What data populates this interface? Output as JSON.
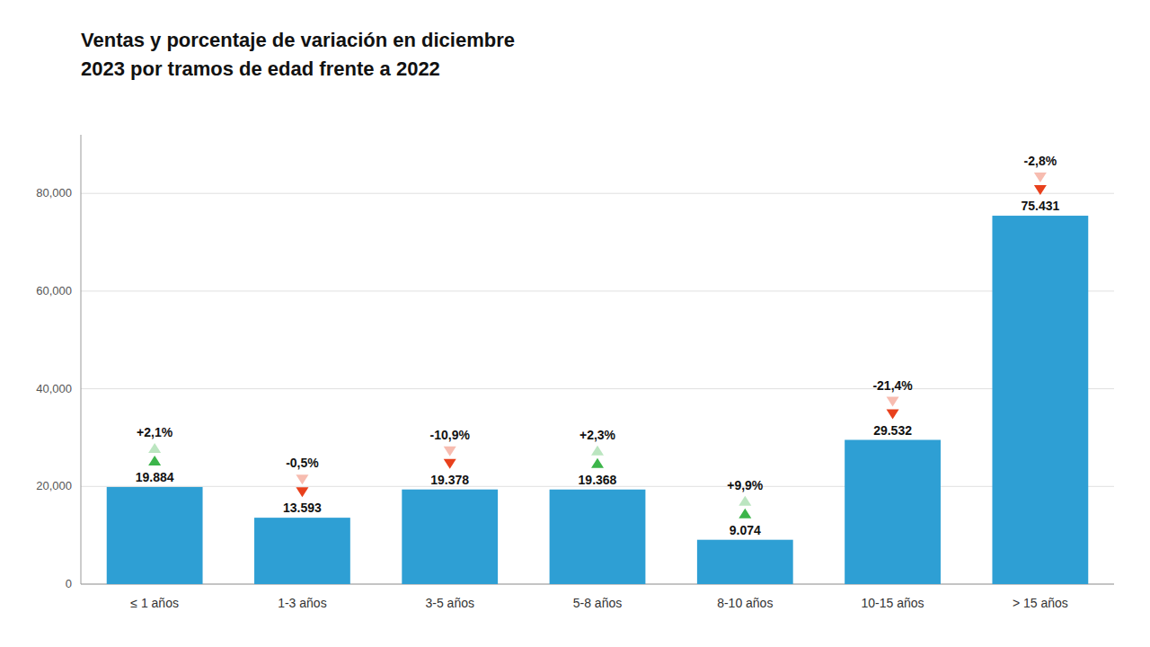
{
  "chart_data": {
    "type": "bar",
    "title": "Ventas y porcentaje de variación en diciembre",
    "subtitle": "2023 por tramos de edad frente a 2022",
    "categories": [
      "≤ 1 años",
      "1-3 años",
      "3-5 años",
      "5-8 años",
      "8-10 años",
      "10-15 años",
      "> 15 años"
    ],
    "values": [
      19884,
      13593,
      19378,
      19368,
      9074,
      29532,
      75431
    ],
    "value_labels": [
      "19.884",
      "13.593",
      "19.378",
      "19.368",
      "9.074",
      "29.532",
      "75.431"
    ],
    "data_labels": true,
    "color": "#2e9fd4",
    "ylim": [
      0,
      92000
    ],
    "yticks": [
      0,
      {
        "value": 20000,
        "label": "20,000"
      },
      {
        "value": 40000,
        "label": "40,000"
      },
      {
        "value": 60000,
        "label": "60,000"
      },
      {
        "value": 80000,
        "label": "80,000"
      }
    ],
    "grid": true,
    "annotations": [
      {
        "text": "+2,1%",
        "marker": "triangle-up",
        "color": "#3cb54a"
      },
      {
        "text": "-0,5%",
        "marker": "triangle-down",
        "color": "#e8401c"
      },
      {
        "text": "-10,9%",
        "marker": "triangle-down",
        "color": "#e8401c"
      },
      {
        "text": "+2,3%",
        "marker": "triangle-up",
        "color": "#3cb54a"
      },
      {
        "text": "+9,9%",
        "marker": "triangle-up",
        "color": "#3cb54a"
      },
      {
        "text": "-21,4%",
        "marker": "triangle-down",
        "color": "#e8401c"
      },
      {
        "text": "-2,8%",
        "marker": "triangle-down",
        "color": "#e8401c"
      }
    ]
  }
}
